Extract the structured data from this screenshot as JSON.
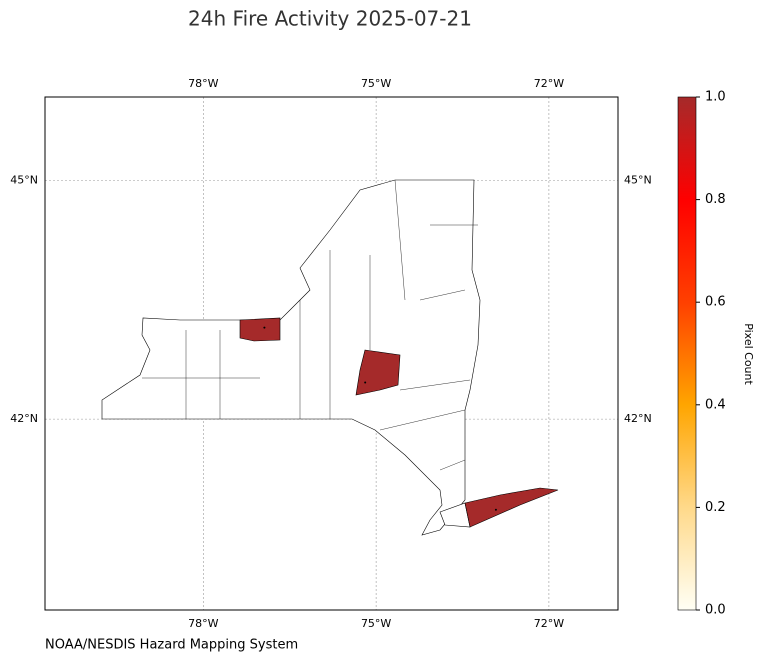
{
  "chart_data": {
    "type": "choropleth-map",
    "title": "24h Fire Activity 2025-07-21",
    "source": "NOAA/NESDIS Hazard Mapping System",
    "xlim": [
      -80.75,
      -70.8
    ],
    "ylim": [
      39.6,
      46.05
    ],
    "xticks": [
      {
        "value": -78,
        "label": "78°W"
      },
      {
        "value": -75,
        "label": "75°W"
      },
      {
        "value": -72,
        "label": "72°W"
      }
    ],
    "yticks": [
      {
        "value": 42,
        "label": "42°N"
      },
      {
        "value": 45,
        "label": "45°N"
      }
    ],
    "grid": true,
    "fires": {
      "lon": [
        -76.94,
        -75.19,
        -72.92
      ],
      "lat": [
        43.15,
        42.46,
        40.86
      ],
      "values": [
        1,
        1,
        1
      ]
    },
    "colorbar": {
      "label": "Pixel Count",
      "lim": [
        0,
        1
      ],
      "ticks": [
        {
          "value": 0,
          "label": "0.0"
        },
        0.2,
        0.4,
        0.6,
        0.8,
        {
          "value": 1,
          "label": "1.0"
        }
      ],
      "colors": [
        "#fffff5",
        "#ffd98a",
        "#ffa500",
        "#ff4000",
        "#ff0000",
        "#a52a2a"
      ]
    }
  }
}
